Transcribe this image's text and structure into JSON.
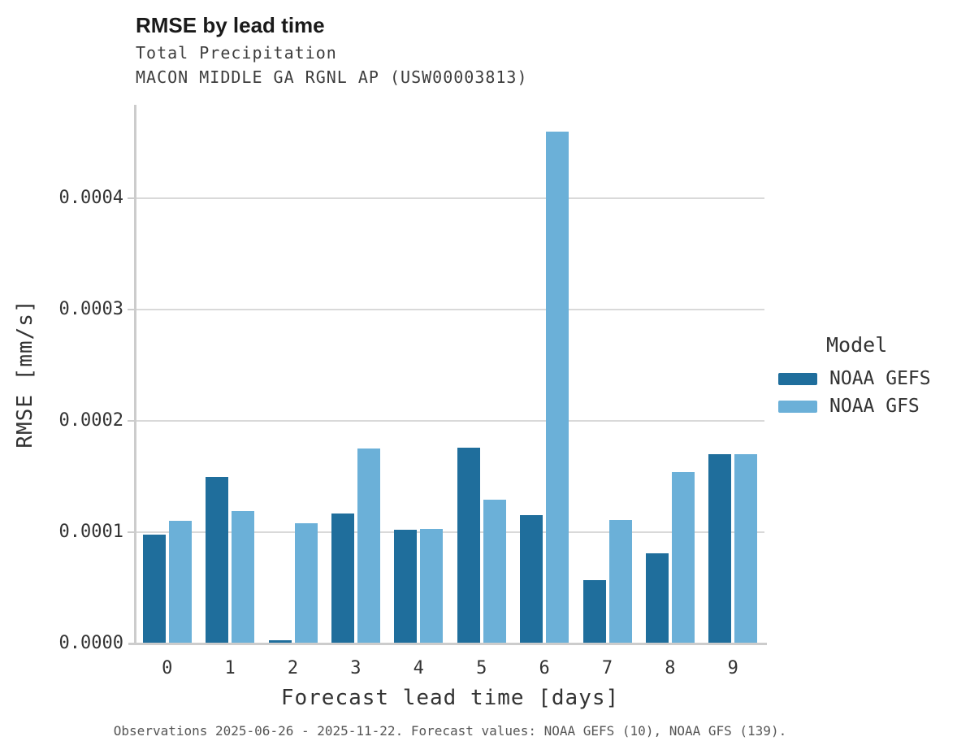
{
  "header": {
    "title": "RMSE by lead time",
    "subtitle_line1": "Total Precipitation",
    "subtitle_line2": "MACON MIDDLE GA RGNL AP (USW00003813)"
  },
  "caption": "Observations 2025-06-26 - 2025-11-22. Forecast values: NOAA GEFS (10), NOAA GFS (139).",
  "legend": {
    "title": "Model",
    "entries": [
      {
        "label": "NOAA GEFS",
        "color": "#1f6e9c"
      },
      {
        "label": "NOAA GFS",
        "color": "#6bb0d8"
      }
    ]
  },
  "colors": {
    "noaa_gefs": "#1f6e9c",
    "noaa_gfs": "#6bb0d8",
    "gridline": "#d9d9d9",
    "axis_spine": "#cccccc",
    "text": "#333333"
  },
  "chart_data": {
    "type": "bar",
    "title": "RMSE by lead time",
    "subtitle": [
      "Total Precipitation",
      "MACON MIDDLE GA RGNL AP (USW00003813)"
    ],
    "xlabel": "Forecast lead time [days]",
    "ylabel": "RMSE [mm/s]",
    "categories": [
      "0",
      "1",
      "2",
      "3",
      "4",
      "5",
      "6",
      "7",
      "8",
      "9"
    ],
    "series": [
      {
        "name": "NOAA GEFS",
        "color": "#1f6e9c",
        "values": [
          9.8e-05,
          0.00015,
          3e-06,
          0.000117,
          0.000102,
          0.000176,
          0.000115,
          5.7e-05,
          8.1e-05,
          0.00017
        ]
      },
      {
        "name": "NOAA GFS",
        "color": "#6bb0d8",
        "values": [
          0.00011,
          0.000119,
          0.000108,
          0.000175,
          0.000103,
          0.000129,
          0.00046,
          0.000111,
          0.000154,
          0.00017
        ]
      }
    ],
    "ylim": [
      0,
      0.000484
    ],
    "yticks": [
      0,
      0.0001,
      0.0002,
      0.0003,
      0.0004
    ],
    "ytick_format_decimals": 4,
    "grid": true,
    "legend_position": "right",
    "legend_title": "Model"
  }
}
